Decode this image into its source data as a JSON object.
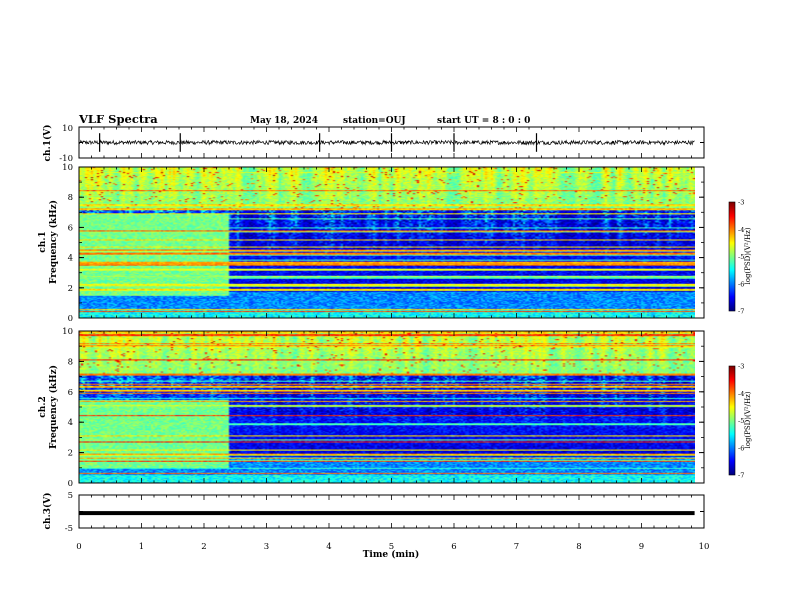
{
  "header": {
    "title": "VLF Spectra",
    "date": "May 18, 2024",
    "station": "station=OUJ",
    "start": "start  UT =  8 : 0  : 0"
  },
  "chart_data": [
    {
      "type": "line",
      "panel": "ch1-waveform",
      "ylabel": "ch.1(V)",
      "ylim": [
        -10,
        10
      ],
      "y_ticks": [
        10,
        -10
      ],
      "baseline": 0,
      "spikes_at_min": [
        0.33,
        1.62,
        3.85,
        5.0,
        6.0,
        7.32
      ]
    },
    {
      "type": "heatmap",
      "panel": "ch1-spectrogram",
      "ylabel": "ch.1\nFrequency (kHz)",
      "ylim": [
        0,
        10
      ],
      "y_ticks": [
        0,
        2,
        4,
        6,
        8,
        10
      ],
      "xlim": [
        0,
        10
      ],
      "data_extent_min": 9.85,
      "regime_change_min": 2.38,
      "early_band_top_khz": 7.0,
      "early_band_bottom_khz": 1.5,
      "colorbar": {
        "label": "log(PSD)(V²/Hz)",
        "range": [
          -7,
          -3
        ],
        "ticks": [
          -3,
          -4,
          -5,
          -6,
          -7
        ]
      }
    },
    {
      "type": "heatmap",
      "panel": "ch2-spectrogram",
      "ylabel": "ch.2\nFrequency (kHz)",
      "ylim": [
        0,
        10
      ],
      "y_ticks": [
        0,
        2,
        4,
        6,
        8,
        10
      ],
      "xlim": [
        0,
        10
      ],
      "data_extent_min": 9.85,
      "regime_change_min": 2.38,
      "early_band_top_khz": 5.5,
      "early_band_bottom_khz": 1.0,
      "colorbar": {
        "label": "log(PSD)(V²/Hz)",
        "range": [
          -7,
          -3
        ],
        "ticks": [
          -3,
          -4,
          -5,
          -6,
          -7
        ]
      }
    },
    {
      "type": "line",
      "panel": "ch3-waveform",
      "ylabel": "ch.3(V)",
      "ylim": [
        -5,
        5
      ],
      "y_ticks": [
        5,
        0,
        -5
      ],
      "level": -0.5,
      "xlabel": "Time (min)",
      "xlim": [
        0,
        10
      ],
      "x_ticks": [
        0,
        1,
        2,
        3,
        4,
        5,
        6,
        7,
        8,
        9,
        10
      ]
    }
  ],
  "colors": {
    "axis": "#000000",
    "trace": "#000000",
    "colormap": [
      "#00007f",
      "#0000ff",
      "#00a0ff",
      "#00ffff",
      "#40ff90",
      "#a0ff00",
      "#ffff00",
      "#ff8000",
      "#ff0000",
      "#ffffff"
    ]
  }
}
